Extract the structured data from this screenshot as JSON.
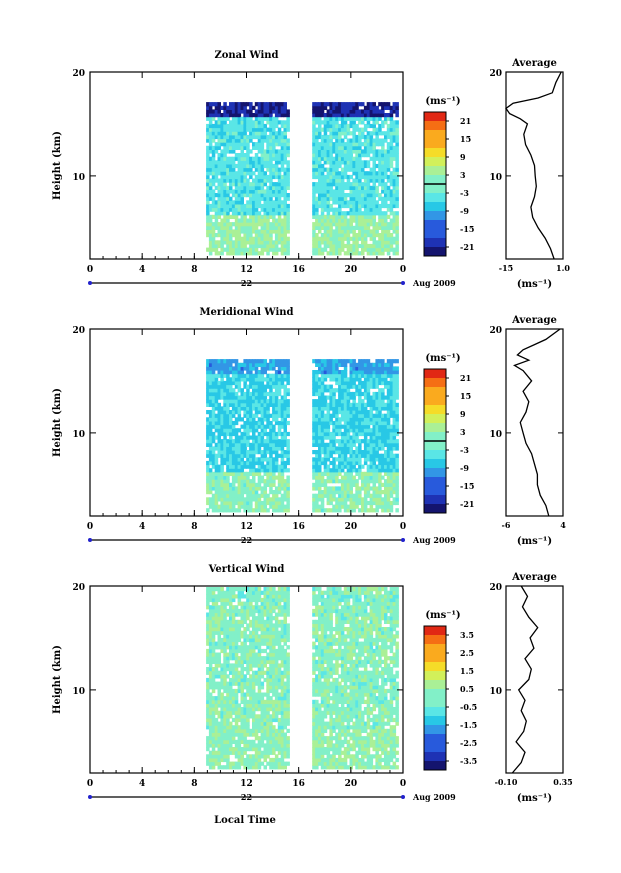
{
  "figure": {
    "xlabel": "Local Time",
    "month_label": "Aug 2009",
    "day_label": "22",
    "unit_label": "(ms⁻¹)",
    "ylabel": "Height (km)",
    "avg_title": "Average"
  },
  "chart_data": [
    {
      "type": "heatmap",
      "title": "Zonal Wind",
      "xlabel": "Local Time",
      "ylabel": "Height (km)",
      "x_ticks": [
        "0",
        "4",
        "8",
        "12",
        "16",
        "20",
        "0"
      ],
      "xlim": [
        0,
        24
      ],
      "y_ticks": [
        "20",
        "10"
      ],
      "ylim": [
        2,
        20
      ],
      "data_start_lt": 8.9,
      "data_gap_lt": [
        15.2,
        17.0
      ],
      "data_end_lt": 23.6,
      "top_km": 16.8,
      "colorbar": {
        "unit": "(ms⁻¹)",
        "ticks": [
          "21",
          "15",
          "9",
          "3",
          "-3",
          "-9",
          "-15",
          "-21"
        ],
        "min": -24,
        "max": 24,
        "zero_line": 0
      },
      "field": {
        "base": -4,
        "low_level": 2,
        "jet_top": -20,
        "noise": 3
      },
      "average": {
        "title": "Average",
        "xlabel": "(ms⁻¹)",
        "x_ticks": [
          "-15",
          "1.0"
        ],
        "xlim": [
          -15,
          1
        ],
        "heights": [
          2,
          3,
          4,
          5,
          6,
          7,
          8,
          9,
          10,
          11,
          12,
          13,
          14,
          15,
          15.5,
          16,
          16.5,
          17,
          17.5,
          18,
          19,
          20
        ],
        "values": [
          -1.5,
          -2.5,
          -4,
          -6,
          -7.5,
          -8,
          -7,
          -6.5,
          -6.8,
          -7,
          -8,
          -9.5,
          -10,
          -9,
          -11,
          -14,
          -15,
          -13,
          -6,
          -2,
          -1,
          0.5
        ]
      }
    },
    {
      "type": "heatmap",
      "title": "Meridional Wind",
      "xlabel": "Local Time",
      "ylabel": "Height (km)",
      "x_ticks": [
        "0",
        "4",
        "8",
        "12",
        "16",
        "20",
        "0"
      ],
      "xlim": [
        0,
        24
      ],
      "y_ticks": [
        "20",
        "10"
      ],
      "ylim": [
        2,
        20
      ],
      "data_start_lt": 8.9,
      "data_gap_lt": [
        15.2,
        17.0
      ],
      "data_end_lt": 23.6,
      "top_km": 16.8,
      "colorbar": {
        "unit": "(ms⁻¹)",
        "ticks": [
          "21",
          "15",
          "9",
          "3",
          "-3",
          "-9",
          "-15",
          "-21"
        ],
        "min": -24,
        "max": 24,
        "zero_line": 0
      },
      "field": {
        "base": -6,
        "low_level": 1,
        "jet_top": -10,
        "noise": 3
      },
      "average": {
        "title": "Average",
        "xlabel": "(ms⁻¹)",
        "x_ticks": [
          "-6",
          "4"
        ],
        "xlim": [
          -6,
          4
        ],
        "heights": [
          2,
          3,
          4,
          5,
          6,
          7,
          8,
          9,
          10,
          11,
          12,
          13,
          14,
          15,
          16,
          16.5,
          17,
          17.5,
          18,
          18.5,
          19,
          20
        ],
        "values": [
          1.5,
          1,
          0,
          -0.5,
          -0.5,
          -1,
          -1.5,
          -2.5,
          -3,
          -3.5,
          -2.5,
          -2,
          -3,
          -1.5,
          -3,
          -4.5,
          -2,
          -4,
          -3,
          -1,
          1,
          3.5
        ]
      }
    },
    {
      "type": "heatmap",
      "title": "Vertical Wind",
      "xlabel": "Local Time",
      "ylabel": "Height (km)",
      "x_ticks": [
        "0",
        "4",
        "8",
        "12",
        "16",
        "20",
        "0"
      ],
      "xlim": [
        0,
        24
      ],
      "y_ticks": [
        "20",
        "10"
      ],
      "ylim": [
        2,
        20
      ],
      "data_start_lt": 8.9,
      "data_gap_lt": [
        15.2,
        17.0
      ],
      "data_end_lt": 23.6,
      "top_km": 19.6,
      "colorbar": {
        "unit": "(ms⁻¹)",
        "ticks": [
          "3.5",
          "2.5",
          "1.5",
          "0.5",
          "-0.5",
          "-1.5",
          "-2.5",
          "-3.5"
        ],
        "min": -4,
        "max": 4,
        "zero_line": null
      },
      "field": {
        "base": 0.1,
        "low_level": 0.2,
        "jet_top": 0,
        "noise": 0.5
      },
      "average": {
        "title": "Average",
        "xlabel": "(ms⁻¹)",
        "x_ticks": [
          "-0.10",
          "0.35"
        ],
        "xlim": [
          -0.1,
          0.35
        ],
        "heights": [
          2,
          3,
          4,
          5,
          6,
          7,
          8,
          9,
          10,
          11,
          12,
          13,
          14,
          15,
          16,
          17,
          18,
          19,
          20
        ],
        "values": [
          -0.05,
          0.02,
          0.05,
          -0.02,
          0.04,
          0.06,
          0.02,
          0.05,
          0.0,
          0.08,
          0.1,
          0.05,
          0.12,
          0.09,
          0.15,
          0.08,
          0.03,
          0.07,
          0.02
        ]
      }
    }
  ]
}
